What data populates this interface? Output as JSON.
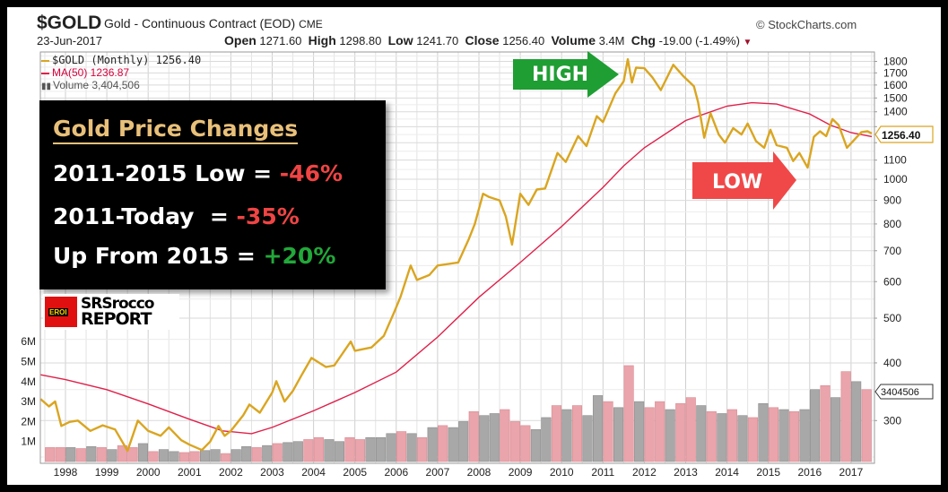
{
  "header": {
    "symbol": "$GOLD",
    "description": "Gold - Continuous Contract (EOD)",
    "exchange": "CME",
    "date": "23-Jun-2017",
    "copyright": "© StockCharts.com",
    "open_label": "Open",
    "open": "1271.60",
    "high_label": "High",
    "high": "1298.80",
    "low_label": "Low",
    "low": "1241.70",
    "close_label": "Close",
    "close": "1256.40",
    "volume_label": "Volume",
    "volume": "3.4M",
    "chg_label": "Chg",
    "chg": "-19.00 (-1.49%)"
  },
  "legend": {
    "price": "$GOLD (Monthly) 1256.40",
    "ma": "MA(50) 1236.87",
    "volume": "Volume 3,404,506"
  },
  "annotation": {
    "title": "Gold Price Changes",
    "rows": [
      {
        "label": "2011-2015 Low = ",
        "value": "-46%",
        "tone": "neg"
      },
      {
        "label": "2011-Today  = ",
        "value": "-35%",
        "tone": "neg"
      },
      {
        "label": "Up From 2015 = ",
        "value": "+20%",
        "tone": "pos"
      }
    ],
    "high_arrow": "HIGH",
    "low_arrow": "LOW",
    "logo_line1": "SRSrocco",
    "logo_line2": "REPORT",
    "logo_badge": "EROI"
  },
  "colors": {
    "price": "#daa520",
    "ma": "#e0204a",
    "vol_up": "#a8a8a8",
    "vol_down": "#eaa4ab",
    "high_arrow": "#1f9e33",
    "low_arrow": "#f04848"
  },
  "chart_data": {
    "type": "line",
    "price_scale": "log",
    "ylim": [
      250,
      1850
    ],
    "y_ticks": [
      "1800",
      "1700",
      "1600",
      "1500",
      "1400",
      "1300",
      "1200",
      "1100",
      "1000",
      "900",
      "800",
      "700",
      "600",
      "500",
      "400",
      "300"
    ],
    "x_ticks": [
      "1998",
      "1999",
      "2000",
      "2001",
      "2002",
      "2003",
      "2004",
      "2005",
      "2006",
      "2007",
      "2008",
      "2009",
      "2010",
      "2011",
      "2012",
      "2013",
      "2014",
      "2015",
      "2016",
      "2017"
    ],
    "volume_ticks": [
      "6M",
      "5M",
      "4M",
      "3M",
      "2M",
      "1M"
    ],
    "last_price_tag": "1256.40",
    "last_volume_tag": "3404506",
    "grid": true,
    "series": [
      {
        "name": "$GOLD (Monthly)",
        "points": [
          [
            1997.4,
            334
          ],
          [
            1997.6,
            322
          ],
          [
            1997.75,
            330
          ],
          [
            1997.9,
            292
          ],
          [
            1998.1,
            298
          ],
          [
            1998.3,
            300
          ],
          [
            1998.6,
            285
          ],
          [
            1998.9,
            293
          ],
          [
            1999.2,
            287
          ],
          [
            1999.5,
            258
          ],
          [
            1999.75,
            300
          ],
          [
            2000.0,
            285
          ],
          [
            2000.3,
            278
          ],
          [
            2000.5,
            290
          ],
          [
            2000.8,
            272
          ],
          [
            2001.0,
            266
          ],
          [
            2001.3,
            259
          ],
          [
            2001.5,
            270
          ],
          [
            2001.7,
            292
          ],
          [
            2001.85,
            278
          ],
          [
            2002.0,
            285
          ],
          [
            2002.3,
            308
          ],
          [
            2002.45,
            325
          ],
          [
            2002.7,
            312
          ],
          [
            2003.0,
            345
          ],
          [
            2003.1,
            365
          ],
          [
            2003.3,
            330
          ],
          [
            2003.5,
            348
          ],
          [
            2003.7,
            375
          ],
          [
            2003.95,
            410
          ],
          [
            2004.3,
            392
          ],
          [
            2004.5,
            395
          ],
          [
            2004.9,
            445
          ],
          [
            2005.0,
            425
          ],
          [
            2005.4,
            432
          ],
          [
            2005.7,
            458
          ],
          [
            2005.95,
            515
          ],
          [
            2006.1,
            555
          ],
          [
            2006.35,
            650
          ],
          [
            2006.5,
            605
          ],
          [
            2006.8,
            620
          ],
          [
            2007.0,
            650
          ],
          [
            2007.5,
            660
          ],
          [
            2007.75,
            740
          ],
          [
            2007.9,
            800
          ],
          [
            2008.1,
            930
          ],
          [
            2008.25,
            915
          ],
          [
            2008.5,
            900
          ],
          [
            2008.65,
            830
          ],
          [
            2008.8,
            722
          ],
          [
            2009.0,
            930
          ],
          [
            2009.2,
            880
          ],
          [
            2009.4,
            950
          ],
          [
            2009.6,
            955
          ],
          [
            2009.9,
            1140
          ],
          [
            2010.1,
            1090
          ],
          [
            2010.4,
            1240
          ],
          [
            2010.6,
            1180
          ],
          [
            2010.85,
            1370
          ],
          [
            2011.0,
            1330
          ],
          [
            2011.3,
            1535
          ],
          [
            2011.5,
            1630
          ],
          [
            2011.6,
            1820
          ],
          [
            2011.7,
            1620
          ],
          [
            2011.8,
            1745
          ],
          [
            2012.0,
            1740
          ],
          [
            2012.2,
            1660
          ],
          [
            2012.4,
            1560
          ],
          [
            2012.7,
            1770
          ],
          [
            2012.95,
            1670
          ],
          [
            2013.2,
            1590
          ],
          [
            2013.3,
            1470
          ],
          [
            2013.45,
            1230
          ],
          [
            2013.6,
            1390
          ],
          [
            2013.8,
            1250
          ],
          [
            2013.95,
            1200
          ],
          [
            2014.15,
            1290
          ],
          [
            2014.35,
            1250
          ],
          [
            2014.5,
            1320
          ],
          [
            2014.7,
            1210
          ],
          [
            2014.9,
            1170
          ],
          [
            2015.05,
            1280
          ],
          [
            2015.2,
            1185
          ],
          [
            2015.45,
            1170
          ],
          [
            2015.6,
            1095
          ],
          [
            2015.75,
            1140
          ],
          [
            2015.95,
            1060
          ],
          [
            2016.1,
            1235
          ],
          [
            2016.25,
            1270
          ],
          [
            2016.4,
            1240
          ],
          [
            2016.55,
            1350
          ],
          [
            2016.7,
            1310
          ],
          [
            2016.9,
            1170
          ],
          [
            2017.05,
            1210
          ],
          [
            2017.25,
            1265
          ],
          [
            2017.4,
            1270
          ],
          [
            2017.5,
            1256.4
          ]
        ]
      },
      {
        "name": "MA(50)",
        "points": [
          [
            1997.4,
            377
          ],
          [
            1998.0,
            368
          ],
          [
            1999.0,
            350
          ],
          [
            2000.0,
            326
          ],
          [
            2001.0,
            302
          ],
          [
            2001.8,
            285
          ],
          [
            2002.5,
            281
          ],
          [
            2003.0,
            290
          ],
          [
            2004.0,
            315
          ],
          [
            2005.0,
            345
          ],
          [
            2006.0,
            382
          ],
          [
            2007.0,
            455
          ],
          [
            2008.0,
            555
          ],
          [
            2009.0,
            660
          ],
          [
            2010.0,
            790
          ],
          [
            2011.0,
            960
          ],
          [
            2011.5,
            1069
          ],
          [
            2012.0,
            1170
          ],
          [
            2013.0,
            1340
          ],
          [
            2014.0,
            1440
          ],
          [
            2014.6,
            1465
          ],
          [
            2015.2,
            1455
          ],
          [
            2016.0,
            1385
          ],
          [
            2016.5,
            1310
          ],
          [
            2017.0,
            1262
          ],
          [
            2017.5,
            1237
          ]
        ]
      }
    ],
    "volume_millions_quarterly": {
      "start": 1997.5,
      "values": [
        0.7,
        0.7,
        0.7,
        0.65,
        0.75,
        0.7,
        0.6,
        0.8,
        0.7,
        0.9,
        0.5,
        0.6,
        0.5,
        0.45,
        0.5,
        0.55,
        0.6,
        0.4,
        0.6,
        0.75,
        0.7,
        0.8,
        0.9,
        0.95,
        1.0,
        1.1,
        1.2,
        1.1,
        1.0,
        1.2,
        1.1,
        1.2,
        1.2,
        1.4,
        1.5,
        1.4,
        1.2,
        1.7,
        1.8,
        1.7,
        2.0,
        2.5,
        2.3,
        2.4,
        2.6,
        2.0,
        1.8,
        1.6,
        2.2,
        2.8,
        2.6,
        2.8,
        2.3,
        3.3,
        3.0,
        2.7,
        4.8,
        3.0,
        2.7,
        3.0,
        2.6,
        2.9,
        3.2,
        2.8,
        2.5,
        2.4,
        2.6,
        2.3,
        2.2,
        2.9,
        2.7,
        2.6,
        2.5,
        2.6,
        3.6,
        3.8,
        3.2,
        4.5,
        4.0,
        3.6
      ],
      "direction": [
        "d",
        "d",
        "u",
        "d",
        "u",
        "d",
        "u",
        "d",
        "d",
        "u",
        "d",
        "u",
        "u",
        "d",
        "d",
        "u",
        "u",
        "d",
        "u",
        "u",
        "d",
        "u",
        "d",
        "u",
        "u",
        "d",
        "d",
        "u",
        "u",
        "d",
        "d",
        "u",
        "u",
        "u",
        "d",
        "u",
        "d",
        "u",
        "d",
        "u",
        "u",
        "d",
        "u",
        "u",
        "d",
        "d",
        "d",
        "u",
        "u",
        "d",
        "u",
        "d",
        "u",
        "u",
        "d",
        "u",
        "d",
        "u",
        "d",
        "d",
        "u",
        "d",
        "d",
        "u",
        "d",
        "u",
        "d",
        "u",
        "d",
        "u",
        "d",
        "u",
        "d",
        "u",
        "u",
        "d",
        "u",
        "d",
        "u",
        "d"
      ]
    }
  }
}
